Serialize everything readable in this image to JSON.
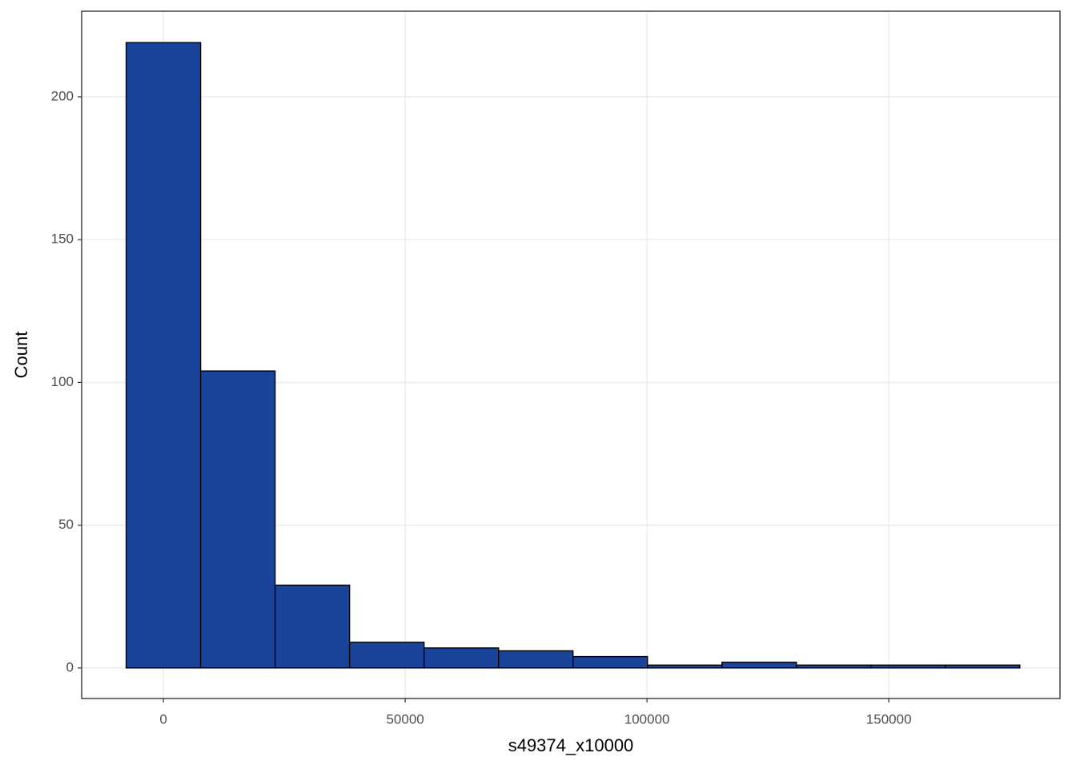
{
  "chart_data": {
    "type": "histogram",
    "xlabel": "s49374_x10000",
    "ylabel": "Count",
    "bins": [
      -7700,
      7700,
      23100,
      38500,
      53900,
      69300,
      84700,
      100100,
      115500,
      130900,
      146300,
      161700,
      177100
    ],
    "values": [
      219,
      104,
      29,
      9,
      7,
      6,
      4,
      1,
      2,
      1,
      1,
      1
    ],
    "color": "#19449a",
    "edgecolor": "#000000",
    "xlim": [
      -16900,
      185400
    ],
    "ylim": [
      -10.7,
      230
    ],
    "xticks": [
      0,
      50000,
      100000,
      150000
    ],
    "yticks": [
      0,
      50,
      100,
      150,
      200
    ],
    "grid": true
  }
}
